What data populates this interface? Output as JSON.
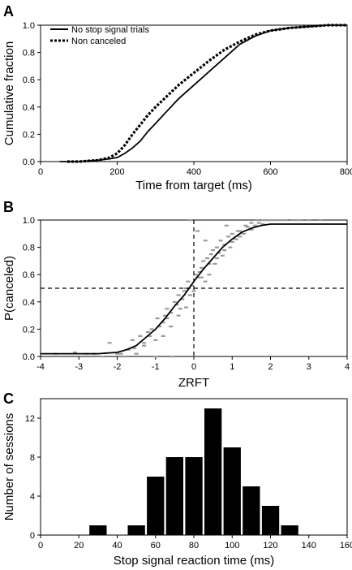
{
  "chart_data": [
    {
      "panel": "A",
      "type": "line",
      "xlabel": "Time from target (ms)",
      "ylabel": "Cumulative fraction",
      "xlim": [
        0,
        800
      ],
      "ylim": [
        0,
        1.0
      ],
      "xticks": [
        "0",
        "200",
        "400",
        "600",
        "800"
      ],
      "yticks": [
        "0.0",
        "0.2",
        "0.4",
        "0.6",
        "0.8",
        "1.0"
      ],
      "legend_position": "top-left",
      "series": [
        {
          "name": "No stop signal trials",
          "style": "solid",
          "x": [
            50,
            100,
            150,
            180,
            200,
            220,
            240,
            260,
            280,
            300,
            330,
            360,
            400,
            440,
            480,
            520,
            560,
            600,
            650,
            700,
            750,
            800
          ],
          "y": [
            0.0,
            0.0,
            0.01,
            0.02,
            0.03,
            0.06,
            0.1,
            0.15,
            0.22,
            0.28,
            0.37,
            0.46,
            0.56,
            0.66,
            0.76,
            0.86,
            0.92,
            0.96,
            0.98,
            0.99,
            1.0,
            1.0
          ]
        },
        {
          "name": "Non canceled",
          "style": "dotted",
          "x": [
            70,
            100,
            150,
            180,
            200,
            220,
            240,
            260,
            280,
            300,
            330,
            360,
            400,
            440,
            480,
            520,
            560,
            600,
            650,
            700,
            750,
            800
          ],
          "y": [
            0.0,
            0.0,
            0.01,
            0.03,
            0.06,
            0.12,
            0.2,
            0.27,
            0.34,
            0.4,
            0.48,
            0.56,
            0.65,
            0.74,
            0.82,
            0.88,
            0.93,
            0.96,
            0.98,
            0.99,
            1.0,
            1.0
          ]
        }
      ]
    },
    {
      "panel": "B",
      "type": "scatter",
      "xlabel": "ZRFT",
      "ylabel": "P(canceled)",
      "xlim": [
        -4,
        4
      ],
      "ylim": [
        0,
        1.0
      ],
      "xticks": [
        "-4",
        "-3",
        "-2",
        "-1",
        "0",
        "1",
        "2",
        "3",
        "4"
      ],
      "yticks": [
        "0.0",
        "0.2",
        "0.4",
        "0.6",
        "0.8",
        "1.0"
      ],
      "reference_lines": {
        "x": 0,
        "y": 0.5
      },
      "fit": {
        "x": [
          -4,
          -3,
          -2.5,
          -2,
          -1.75,
          -1.5,
          -1.25,
          -1,
          -0.75,
          -0.5,
          -0.25,
          0,
          0.25,
          0.5,
          0.75,
          1,
          1.25,
          1.5,
          1.75,
          2,
          2.5,
          3,
          3.5,
          4
        ],
        "y": [
          0.02,
          0.02,
          0.02,
          0.03,
          0.05,
          0.08,
          0.14,
          0.2,
          0.28,
          0.37,
          0.45,
          0.55,
          0.64,
          0.72,
          0.8,
          0.86,
          0.91,
          0.94,
          0.96,
          0.97,
          0.97,
          0.97,
          0.97,
          0.97
        ]
      },
      "points": {
        "x": [
          -3.6,
          -3.1,
          -2.6,
          -2.2,
          -1.9,
          -1.8,
          -1.6,
          -1.5,
          -1.4,
          -1.3,
          -1.2,
          -1.1,
          -1.0,
          -0.95,
          -0.9,
          -0.8,
          -0.75,
          -0.7,
          -0.6,
          -0.55,
          -0.5,
          -0.45,
          -0.4,
          -0.3,
          -0.25,
          -0.2,
          -0.15,
          -0.1,
          -0.05,
          0.05,
          0.1,
          0.15,
          0.2,
          0.25,
          0.3,
          0.35,
          0.4,
          0.45,
          0.5,
          0.6,
          0.65,
          0.7,
          0.8,
          0.9,
          1.0,
          1.1,
          1.2,
          1.3,
          1.4,
          1.5,
          1.6,
          1.7,
          1.8,
          1.9,
          2.0,
          2.2,
          2.4,
          2.6,
          2.8,
          -1.7,
          -1.3,
          -1.0,
          -0.8,
          -0.6,
          -0.4,
          -0.2,
          0.0,
          0.2,
          0.4,
          0.6,
          0.8,
          1.0,
          1.2,
          1.5,
          1.8,
          2.1,
          0.55,
          0.75,
          0.95,
          1.15,
          1.35,
          1.65,
          1.95,
          2.3,
          -0.35,
          -0.7,
          -1.15,
          -1.55,
          -2.0,
          0.3,
          0.1,
          -0.1,
          2.7,
          3.0,
          3.3,
          -2.4,
          -2.8,
          0.85
        ],
        "y": [
          0.02,
          0.03,
          0.02,
          0.1,
          0.02,
          0.0,
          0.12,
          0.02,
          0.15,
          0.08,
          0.18,
          0.2,
          0.12,
          0.28,
          0.22,
          0.25,
          0.3,
          0.35,
          0.32,
          0.0,
          0.4,
          0.38,
          0.45,
          0.42,
          0.48,
          0.5,
          0.55,
          0.45,
          0.52,
          0.6,
          0.58,
          0.62,
          0.65,
          0.7,
          0.55,
          0.72,
          0.68,
          0.75,
          0.78,
          0.8,
          0.76,
          0.85,
          0.82,
          0.88,
          0.9,
          0.86,
          0.92,
          0.9,
          0.95,
          0.93,
          0.96,
          0.98,
          0.97,
          1.0,
          1.0,
          1.0,
          1.0,
          1.0,
          1.0,
          0.05,
          0.1,
          0.0,
          0.15,
          0.22,
          0.3,
          0.36,
          0.48,
          0.58,
          0.6,
          0.72,
          0.78,
          0.84,
          0.88,
          0.98,
          1.0,
          1.0,
          0.68,
          0.74,
          0.8,
          0.92,
          0.96,
          1.0,
          1.0,
          1.0,
          0.35,
          0.28,
          0.15,
          0.06,
          0.02,
          0.85,
          0.92,
          1.0,
          1.0,
          1.0,
          1.0,
          0.0,
          0.02,
          0.96
        ]
      }
    },
    {
      "panel": "C",
      "type": "bar",
      "xlabel": "Stop signal reaction time (ms)",
      "ylabel": "Number of sessions",
      "xlim": [
        0,
        160
      ],
      "ylim": [
        0,
        14
      ],
      "xticks": [
        "0",
        "20",
        "40",
        "60",
        "80",
        "100",
        "120",
        "140",
        "160"
      ],
      "yticks": [
        "0",
        "4",
        "8",
        "12"
      ],
      "bin_width": 10,
      "bin_centers": [
        30,
        40,
        50,
        60,
        70,
        80,
        90,
        100,
        110,
        120,
        130
      ],
      "values": [
        1,
        0,
        1,
        6,
        8,
        8,
        13,
        9,
        5,
        3,
        1
      ]
    }
  ]
}
